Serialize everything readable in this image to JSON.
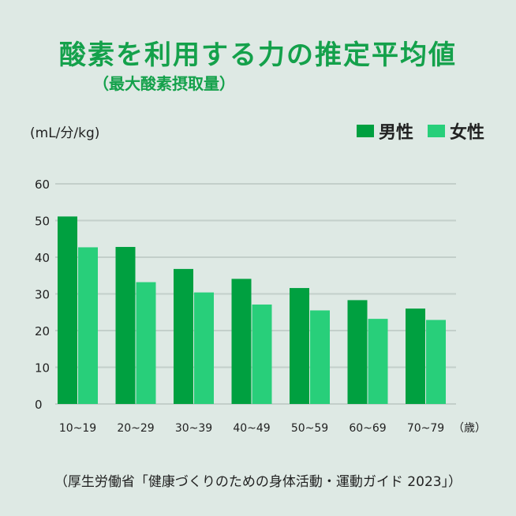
{
  "title": "酸素を利用する力の推定平均値",
  "subtitle": "（最大酸素摂取量）",
  "source": "（厚生労働省「健康づくりのための身体活動・運動ガイド 2023」）",
  "colors": {
    "male": "#00a040",
    "female": "#28cf7a",
    "title": "#14a14b",
    "background": "#dee9e4",
    "grid": "#c3cfca"
  },
  "chart_data": {
    "type": "bar",
    "ylabel": "(mL/分/kg)",
    "xunit": "（歳）",
    "ylim": [
      0,
      60
    ],
    "yticks": [
      0,
      10,
      20,
      30,
      40,
      50,
      60
    ],
    "grid": true,
    "legend": "top-right",
    "categories": [
      "10~19",
      "20~29",
      "30~39",
      "40~49",
      "50~59",
      "60~69",
      "70~79"
    ],
    "series": [
      {
        "name": "男性",
        "values": [
          51.1,
          42.8,
          36.8,
          34.1,
          31.6,
          28.3,
          26.0
        ]
      },
      {
        "name": "女性",
        "values": [
          42.7,
          33.2,
          30.4,
          27.1,
          25.5,
          23.2,
          22.9
        ]
      }
    ]
  }
}
